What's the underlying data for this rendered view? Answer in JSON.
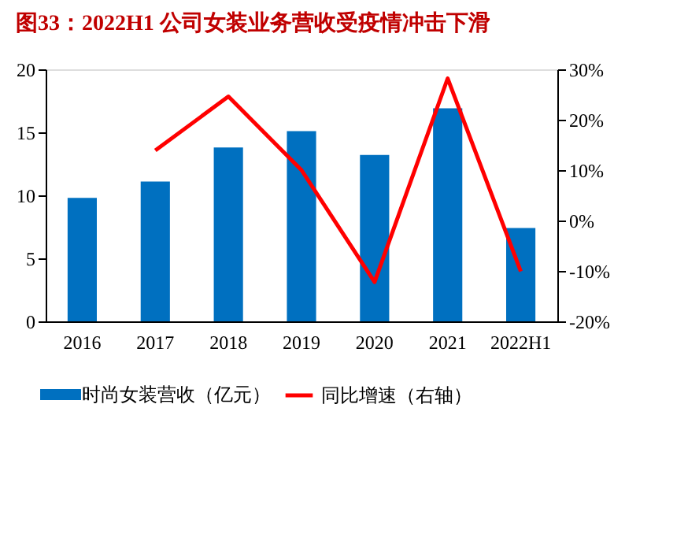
{
  "chart_data": {
    "type": "bar",
    "title": "图33：2022H1 公司女装业务营收受疫情冲击下滑",
    "categories": [
      "2016",
      "2017",
      "2018",
      "2019",
      "2020",
      "2021",
      "2022H1"
    ],
    "series": [
      {
        "name": "时尚女装营收（亿元）",
        "color": "#0070c0",
        "values": [
          9.8,
          11.1,
          13.8,
          15.1,
          13.2,
          16.9,
          7.4
        ]
      },
      {
        "name": "同比增速（右轴）",
        "type": "line",
        "axis": "y2",
        "color": "#ff0000",
        "values": [
          null,
          13.9,
          24.6,
          10.0,
          -12.2,
          28.2,
          -10.1
        ]
      }
    ],
    "ylim": [
      0,
      20
    ],
    "yticks": [
      0,
      5,
      10,
      15,
      20
    ],
    "y2lim": [
      -20,
      30
    ],
    "y2ticks": [
      {
        "value": -20,
        "label": "-20%"
      },
      {
        "value": -10,
        "label": "-10%"
      },
      {
        "value": 0,
        "label": "0%"
      },
      {
        "value": 10,
        "label": "10%"
      },
      {
        "value": 20,
        "label": "20%"
      },
      {
        "value": 30,
        "label": "30%"
      }
    ],
    "grid": false,
    "legend": "bottom",
    "line_style": "solid",
    "marker": "none"
  }
}
